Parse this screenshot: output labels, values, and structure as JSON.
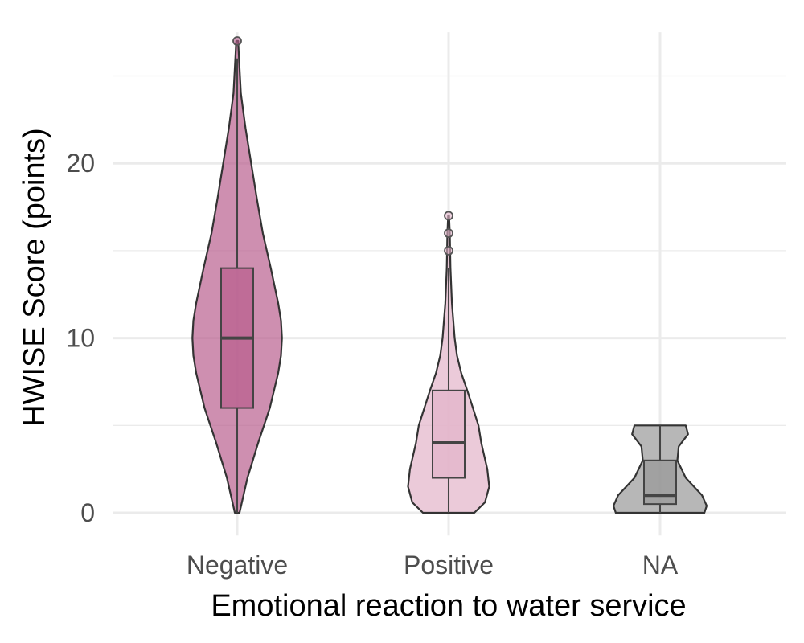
{
  "chart_data": {
    "type": "violin",
    "title": "",
    "xlabel": "Emotional reaction to water service",
    "ylabel": "HWISE Score (points)",
    "ylim": [
      -1.3,
      27.5
    ],
    "yticks": [
      0,
      10,
      20
    ],
    "grid": true,
    "legend": "none",
    "categories": [
      "Negative",
      "Positive",
      "NA"
    ],
    "groups": [
      {
        "category": "Negative",
        "color": "#b9608f",
        "box": {
          "min": 0,
          "q1": 6,
          "median": 10,
          "q3": 14,
          "max": 26
        },
        "outliers": [
          27
        ],
        "density": [
          [
            0,
            0.05
          ],
          [
            2,
            0.22
          ],
          [
            4,
            0.45
          ],
          [
            6,
            0.7
          ],
          [
            8,
            0.88
          ],
          [
            9,
            0.94
          ],
          [
            10,
            0.96
          ],
          [
            11,
            0.94
          ],
          [
            12,
            0.88
          ],
          [
            14,
            0.72
          ],
          [
            16,
            0.55
          ],
          [
            18,
            0.42
          ],
          [
            20,
            0.3
          ],
          [
            22,
            0.18
          ],
          [
            24,
            0.08
          ],
          [
            26,
            0.04
          ],
          [
            27,
            0.02
          ]
        ]
      },
      {
        "category": "Positive",
        "color": "#e3b4c9",
        "box": {
          "min": 0,
          "q1": 2,
          "median": 4,
          "q3": 7,
          "max": 14
        },
        "outliers": [
          15,
          16,
          17
        ],
        "density": [
          [
            0,
            0.55
          ],
          [
            0.6,
            0.78
          ],
          [
            1.5,
            0.87
          ],
          [
            2.5,
            0.83
          ],
          [
            4,
            0.7
          ],
          [
            5,
            0.64
          ],
          [
            6,
            0.52
          ],
          [
            7,
            0.4
          ],
          [
            8,
            0.27
          ],
          [
            9,
            0.18
          ],
          [
            10,
            0.13
          ],
          [
            12,
            0.07
          ],
          [
            14,
            0.04
          ],
          [
            16,
            0.025
          ],
          [
            17,
            0.01
          ]
        ]
      },
      {
        "category": "NA",
        "color": "#999999",
        "box": {
          "min": 0,
          "q1": 0.5,
          "median": 1,
          "q3": 3,
          "max": 5
        },
        "outliers": [],
        "density": [
          [
            0,
            0.95
          ],
          [
            0.4,
            1.0
          ],
          [
            1,
            0.9
          ],
          [
            2,
            0.55
          ],
          [
            3,
            0.37
          ],
          [
            3.8,
            0.4
          ],
          [
            4.5,
            0.6
          ],
          [
            5,
            0.55
          ]
        ]
      }
    ]
  }
}
